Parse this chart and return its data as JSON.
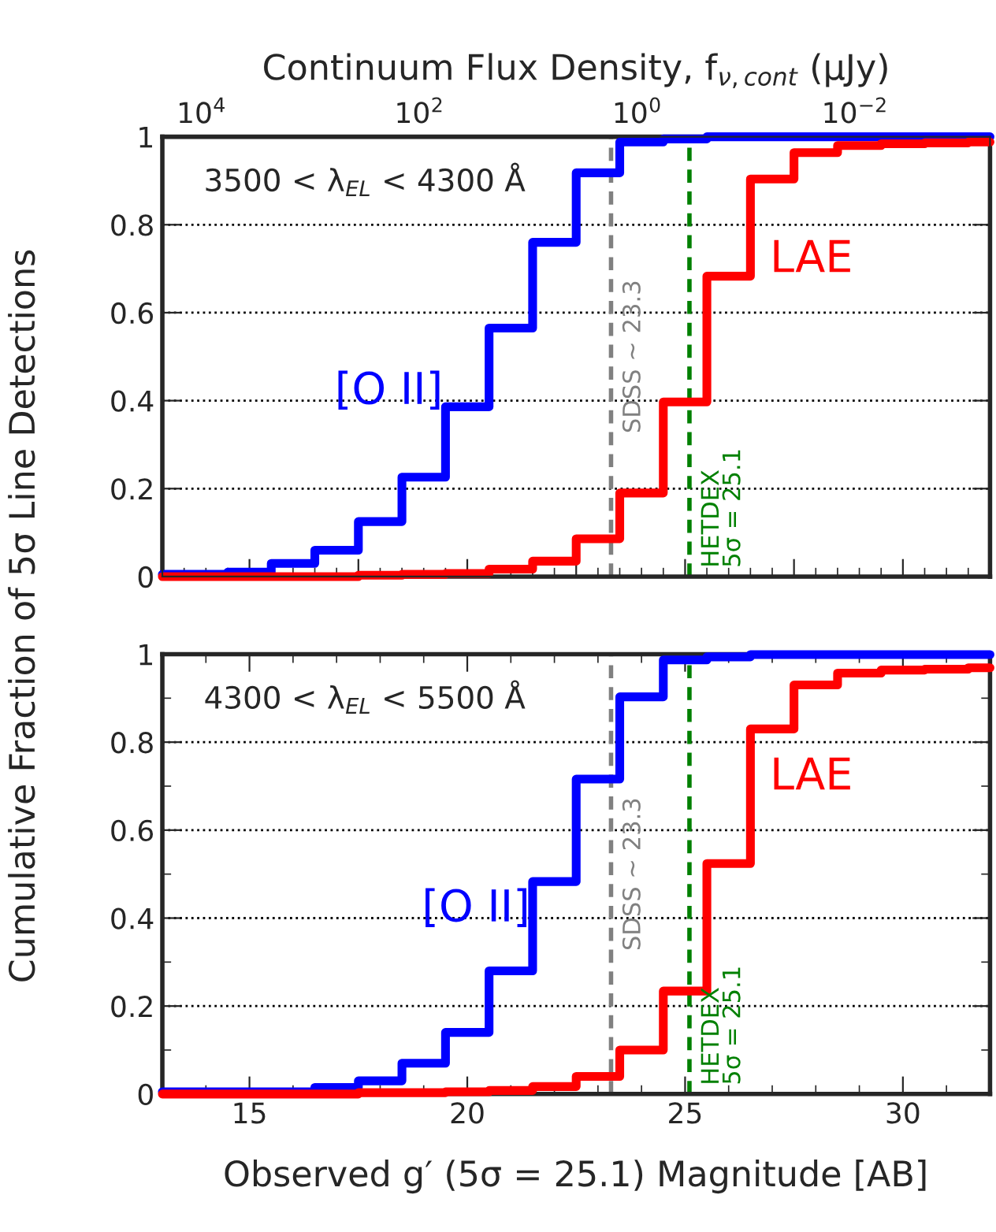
{
  "chart_data": [
    {
      "type": "step",
      "x2label": "Continuum Flux Density, f$_{ν,cont}$ (μJy)",
      "ylabel": "Cumulative Fraction of 5σ Line Detections",
      "annotations": [
        "3500 < λ$_{EL}$ < 4300 Å"
      ],
      "x": [
        13,
        14.5,
        15.5,
        16.5,
        17.5,
        18.5,
        19.5,
        20.5,
        21.5,
        22.5,
        23.5,
        24.5,
        25.5,
        26.5,
        27.5,
        28.5,
        29.5,
        30.5,
        31.5,
        32
      ],
      "series": [
        {
          "name": "[O II]",
          "color": "#0000ff",
          "values": [
            0.005,
            0.01,
            0.03,
            0.06,
            0.125,
            0.226,
            0.386,
            0.565,
            0.76,
            0.918,
            0.988,
            0.995,
            1.0,
            1.0,
            1.0,
            1.0,
            1.0,
            1.0,
            1.0,
            1.0
          ]
        },
        {
          "name": "LAE",
          "color": "#ff0000",
          "values": [
            0.0,
            0.0,
            0.0,
            0.0,
            0.003,
            0.005,
            0.007,
            0.017,
            0.035,
            0.086,
            0.19,
            0.397,
            0.683,
            0.904,
            0.964,
            0.98,
            0.984,
            0.986,
            0.988,
            0.988
          ]
        }
      ],
      "xlim": [
        13,
        32
      ],
      "ylim": [
        0,
        1
      ],
      "yticks": [
        0,
        0.2,
        0.4,
        0.6,
        0.8,
        1
      ],
      "x2lim": [
        22909,
        0.000575
      ],
      "x2ticks": [
        {
          "value": 10000,
          "label": "10$^{4}$"
        },
        {
          "value": 100,
          "label": "10$^{2}$"
        },
        {
          "value": 1,
          "label": "10$^{0}$"
        },
        {
          "value": 0.01,
          "label": "10$^{−2}$"
        }
      ],
      "log": "x2",
      "tick_labels": "y",
      "grid": "y",
      "line_style": "solid",
      "marker": "none",
      "ref_lines": [
        {
          "axis": "x",
          "value": 23.3,
          "label": "SDSS ∼ 23.3",
          "color": "#808080",
          "line_style": "dashed"
        },
        {
          "axis": "x",
          "value": 25.1,
          "label": "HETDEX\n5σ = 25.1",
          "color": "#008000",
          "line_style": "dashed"
        }
      ]
    },
    {
      "type": "step",
      "xlabel": "Observed g′ (5σ = 25.1) Magnitude [AB]",
      "annotations": [
        "4300 < λ$_{EL}$ < 5500 Å"
      ],
      "x": [
        13,
        16.5,
        17.5,
        18.5,
        19.5,
        20.5,
        21.5,
        22.5,
        23.5,
        24.5,
        25.5,
        26.5,
        27.5,
        28.5,
        29.5,
        30.5,
        31.5,
        32
      ],
      "series": [
        {
          "name": "[O II]",
          "color": "#0000ff",
          "values": [
            0.005,
            0.015,
            0.03,
            0.07,
            0.14,
            0.28,
            0.483,
            0.716,
            0.903,
            0.987,
            0.994,
            0.999,
            0.999,
            0.999,
            0.999,
            0.999,
            0.999,
            0.999
          ]
        },
        {
          "name": "LAE",
          "color": "#ff0000",
          "values": [
            0.0,
            0.0,
            0.003,
            0.003,
            0.005,
            0.008,
            0.017,
            0.04,
            0.1,
            0.234,
            0.524,
            0.83,
            0.93,
            0.957,
            0.964,
            0.966,
            0.969,
            0.969
          ]
        }
      ],
      "xlim": [
        13,
        32
      ],
      "xticks": [
        15,
        20,
        25,
        30
      ],
      "ylim": [
        0,
        1
      ],
      "yticks": [
        0,
        0.2,
        0.4,
        0.6,
        0.8,
        1
      ],
      "grid": "y",
      "line_style": "solid",
      "marker": "none",
      "ref_lines": [
        {
          "axis": "x",
          "value": 23.3,
          "label": "SDSS ∼ 23.3",
          "color": "#808080",
          "line_style": "dashed"
        },
        {
          "axis": "x",
          "value": 25.1,
          "label": "HETDEX\n5σ = 25.1",
          "color": "#008000",
          "line_style": "dashed"
        }
      ]
    }
  ]
}
